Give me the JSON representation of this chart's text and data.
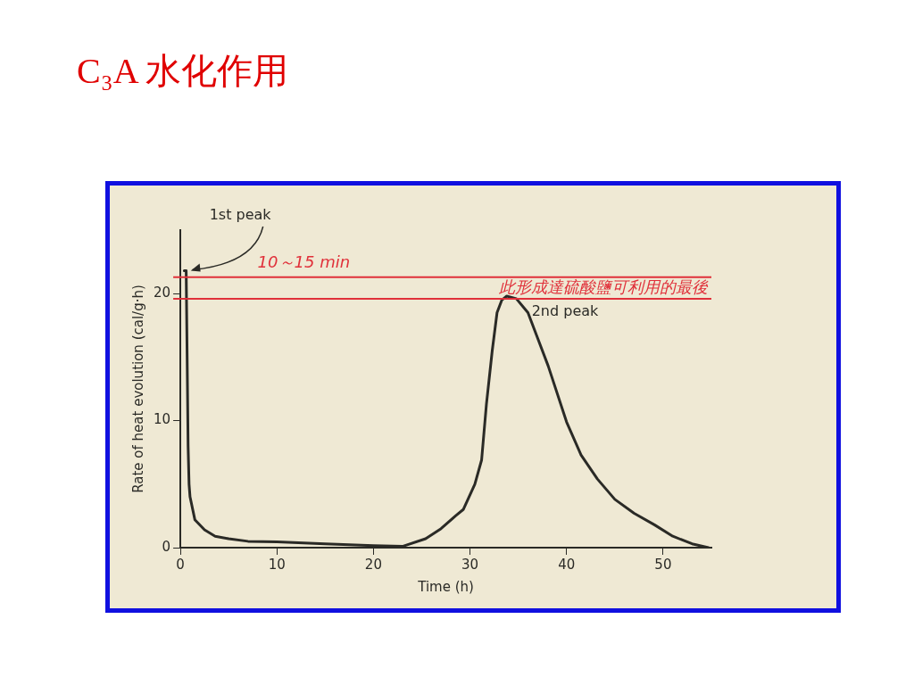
{
  "chart_data": {
    "type": "line",
    "title": "C₃A 水化作用",
    "xlabel": "Time (h)",
    "ylabel": "Rate of heat evolution (cal/g·h)",
    "series": [
      {
        "color": "#2a2a26",
        "x": [
          0.4,
          0.6,
          0.7,
          0.8,
          0.9,
          1.0,
          1.5,
          2.5,
          3.6,
          5,
          7,
          10,
          15,
          20,
          23,
          25.4,
          27,
          28.5,
          29.3,
          30.5,
          31.2,
          31.7,
          32.3,
          32.8,
          33.3,
          33.8,
          34.8,
          36,
          37,
          38.1,
          40,
          41.5,
          43.2,
          45,
          47,
          49.1,
          51,
          53,
          54.7
        ],
        "values": [
          21.8,
          21.8,
          15,
          8,
          5,
          4,
          2.2,
          1.4,
          0.9,
          0.7,
          0.5,
          0.45,
          0.3,
          0.15,
          0.1,
          0.7,
          1.5,
          2.5,
          3,
          5,
          6.9,
          11.3,
          15.5,
          18.5,
          19.5,
          19.8,
          19.6,
          18.5,
          16.5,
          14.3,
          9.9,
          7.3,
          5.4,
          3.8,
          2.7,
          1.8,
          0.9,
          0.3,
          0
        ]
      }
    ],
    "xlim": [
      0,
      55
    ],
    "ylim": [
      0,
      25
    ],
    "xticks": [
      0,
      10,
      20,
      30,
      40,
      50
    ],
    "yticks": [
      0,
      10,
      20
    ],
    "grid": false,
    "legend": false,
    "marker": "none",
    "line_style": "solid",
    "ref_lines": [
      {
        "axis": "y",
        "value": 21.3,
        "label": "10～15 min",
        "color": "#e0303a"
      },
      {
        "axis": "y",
        "value": 19.6,
        "label": "此形成達硫酸鹽可利用的最後",
        "color": "#e0303a"
      }
    ],
    "annotations": [
      {
        "text": "1st peak",
        "x": 0.7,
        "y": 21.8
      },
      {
        "text": "2nd peak",
        "x": 33.8,
        "y": 19.8
      }
    ]
  }
}
